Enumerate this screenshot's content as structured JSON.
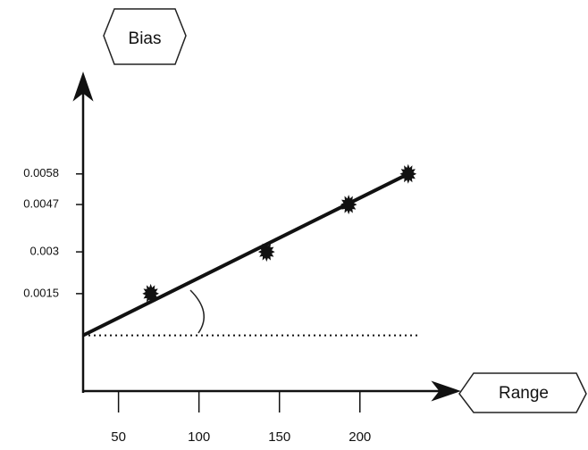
{
  "chart_data": {
    "type": "line",
    "y_label": "Bias",
    "x_label": "Range",
    "x": [
      70,
      142,
      193,
      230
    ],
    "series": [
      {
        "color": "#111111",
        "values": [
          0.0015,
          0.003,
          0.0047,
          0.0058
        ]
      }
    ],
    "fit": {
      "x": [
        28,
        230
      ],
      "values": [
        0,
        0.0058
      ]
    },
    "hline": 0,
    "xlim": [
      28,
      254
    ],
    "ylim": [
      -0.002,
      0.009
    ],
    "xticks": [
      50,
      100,
      150,
      200
    ],
    "yticks": [
      0.0015,
      0.003,
      0.0047,
      0.0058
    ]
  }
}
